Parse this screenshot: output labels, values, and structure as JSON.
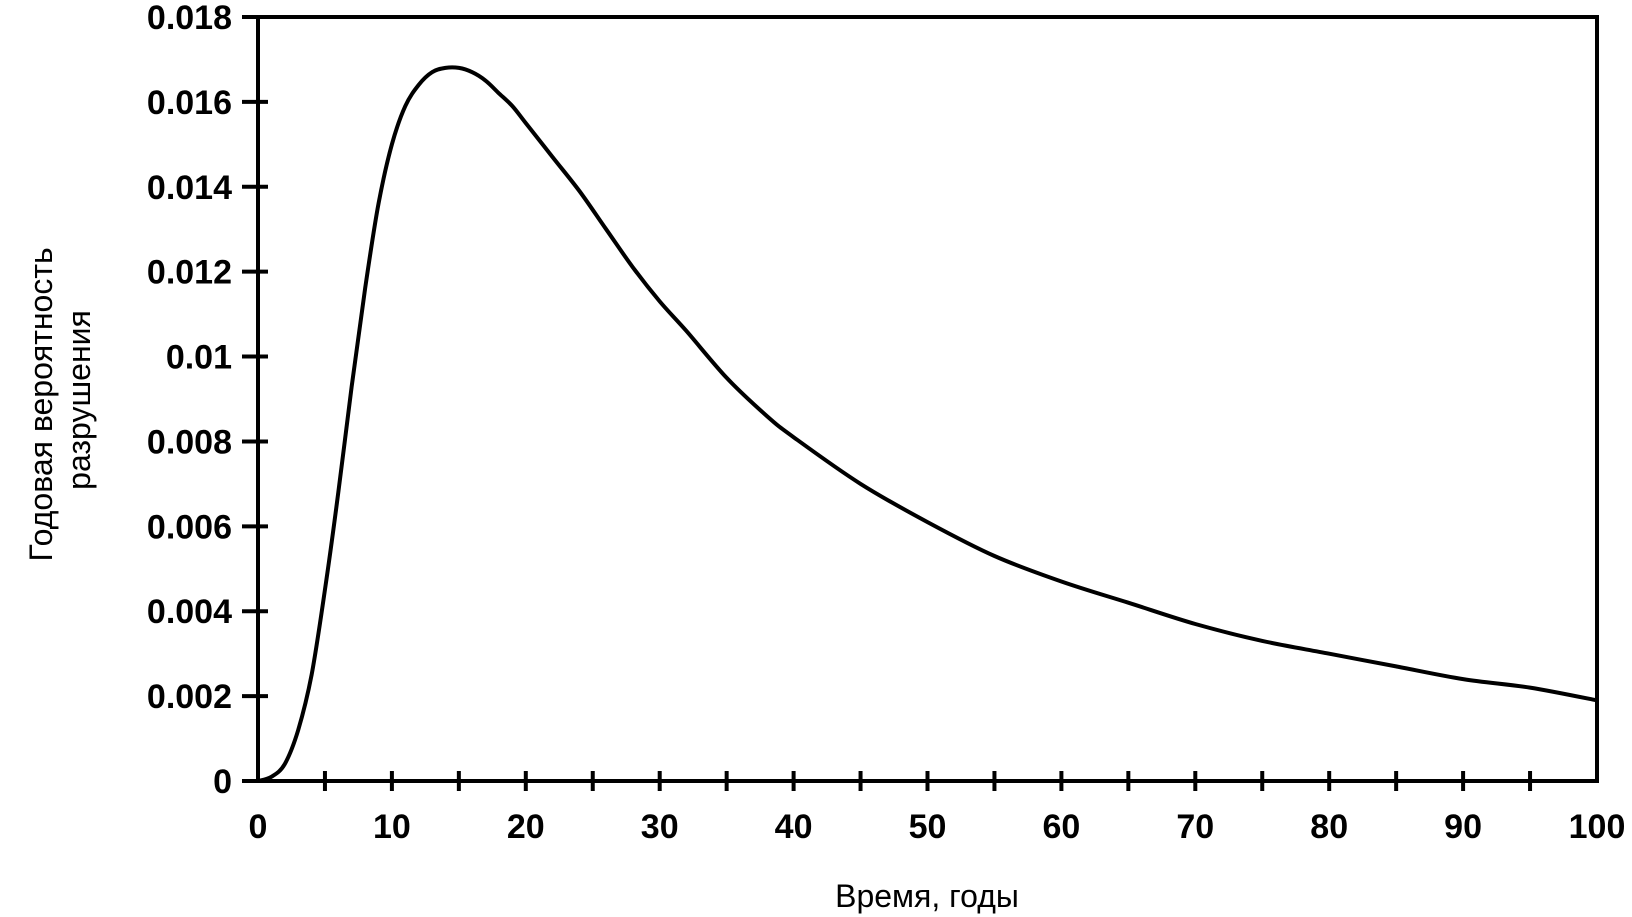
{
  "chart_data": {
    "type": "line",
    "title": "",
    "xlabel": "Время, годы",
    "ylabel_lines": [
      "Годовая вероятность",
      "разрушения"
    ],
    "xlim": [
      0,
      100
    ],
    "ylim": [
      0,
      0.018
    ],
    "x_ticks": [
      "0",
      "10",
      "20",
      "30",
      "40",
      "50",
      "60",
      "70",
      "80",
      "90",
      "100"
    ],
    "x_minor_step": 5,
    "y_ticks": [
      "0",
      "0.002",
      "0.004",
      "0.006",
      "0.008",
      "0.01",
      "0.012",
      "0.014",
      "0.016",
      "0.018"
    ],
    "grid": false,
    "legend": "none",
    "line_color": "#000000",
    "series": [
      {
        "x": [
          0,
          1,
          2,
          3,
          4,
          5,
          6,
          7,
          8,
          9,
          10,
          11,
          12,
          13,
          14,
          15,
          16,
          17,
          18,
          19,
          20,
          22,
          24,
          26,
          28,
          30,
          32,
          35,
          38,
          40,
          45,
          50,
          55,
          60,
          65,
          70,
          75,
          80,
          85,
          90,
          95,
          100
        ],
        "y": [
          0,
          0.0001,
          0.0004,
          0.0012,
          0.0025,
          0.0045,
          0.0068,
          0.0093,
          0.0116,
          0.0136,
          0.015,
          0.0159,
          0.0164,
          0.0167,
          0.0168,
          0.0168,
          0.0167,
          0.0165,
          0.0162,
          0.0159,
          0.0155,
          0.0147,
          0.0139,
          0.013,
          0.0121,
          0.0113,
          0.0106,
          0.0095,
          0.0086,
          0.0081,
          0.007,
          0.0061,
          0.0053,
          0.0047,
          0.0042,
          0.0037,
          0.0033,
          0.003,
          0.0027,
          0.0024,
          0.0022,
          0.0019
        ]
      }
    ]
  }
}
